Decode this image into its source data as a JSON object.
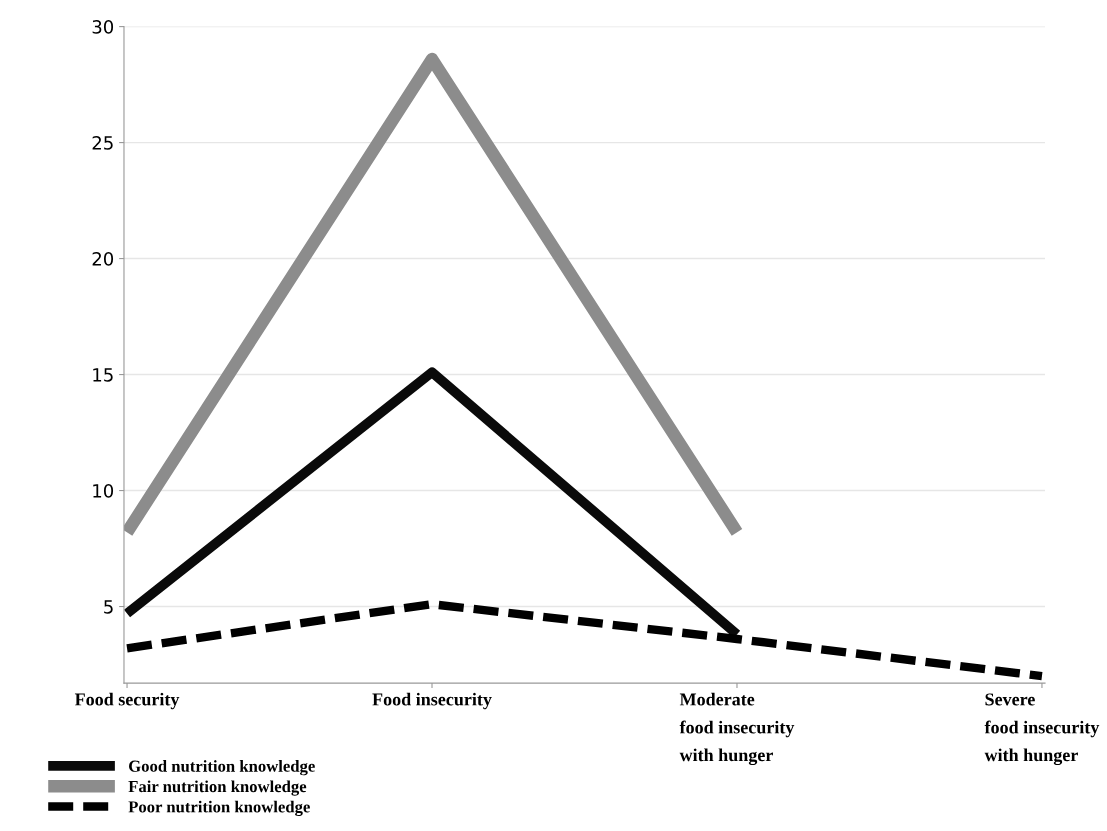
{
  "chart_data": {
    "type": "line",
    "categories": [
      "Food security",
      "Food insecurity",
      "Moderate\nfood insecurity\nwith hunger",
      "Severe\nfood insecurity\nwith hunger"
    ],
    "series": [
      {
        "name": "Good nutrition knowledge",
        "color": "#0a0a0a",
        "values": [
          4.7,
          15.1,
          3.8,
          null
        ]
      },
      {
        "name": "Fair nutrition knowledge",
        "color": "#8c8c8c",
        "values": [
          8.2,
          28.6,
          8.2,
          null
        ]
      },
      {
        "name": "Poor nutrition knowledge",
        "color": "#000000",
        "line_style": "dashed",
        "values": [
          3.2,
          5.1,
          3.6,
          2.0
        ]
      }
    ],
    "ylim": [
      1.7,
      30
    ],
    "yticks": [
      5,
      10,
      15,
      20,
      25,
      30
    ],
    "grid": "y",
    "legend": "bottom left",
    "marker": "none",
    "line_style": "solid"
  }
}
